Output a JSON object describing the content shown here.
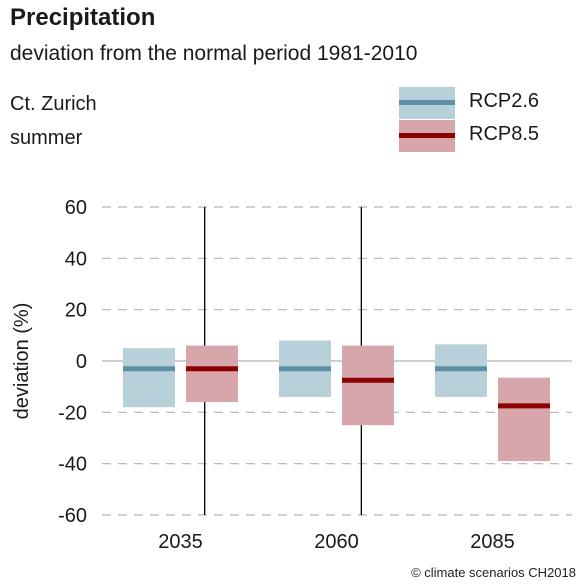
{
  "header": {
    "title": "Precipitation",
    "subtitle": "deviation from the normal period 1981-2010",
    "location": "Ct. Zurich",
    "season": "summer"
  },
  "credit": "© climate scenarios CH2018",
  "colors": {
    "rcp26_fill": "#b8d0d9",
    "rcp26_line": "#5f8fa5",
    "rcp85_fill": "#d7a6ab",
    "rcp85_line": "#8b0000",
    "grid": "#b3b3b3",
    "divider": "#000000"
  },
  "chart_data": {
    "type": "bar",
    "title": "Precipitation",
    "subtitle": "deviation from the normal period 1981-2010",
    "ylabel": "deviation (%)",
    "xlabel": "",
    "ylim": [
      -60,
      60
    ],
    "yticks": [
      60,
      40,
      20,
      0,
      -20,
      -40,
      -60
    ],
    "grid": true,
    "legend_position": "top-right",
    "categories": [
      "2035",
      "2060",
      "2085"
    ],
    "series": [
      {
        "name": "RCP2.6",
        "low": [
          -18,
          -14,
          -14
        ],
        "median": [
          -3,
          -3,
          -3
        ],
        "high": [
          5,
          8,
          6.5
        ]
      },
      {
        "name": "RCP8.5",
        "low": [
          -16,
          -25,
          -39
        ],
        "median": [
          -3,
          -7.5,
          -17.5
        ],
        "high": [
          6,
          6,
          -6.5
        ]
      }
    ]
  }
}
